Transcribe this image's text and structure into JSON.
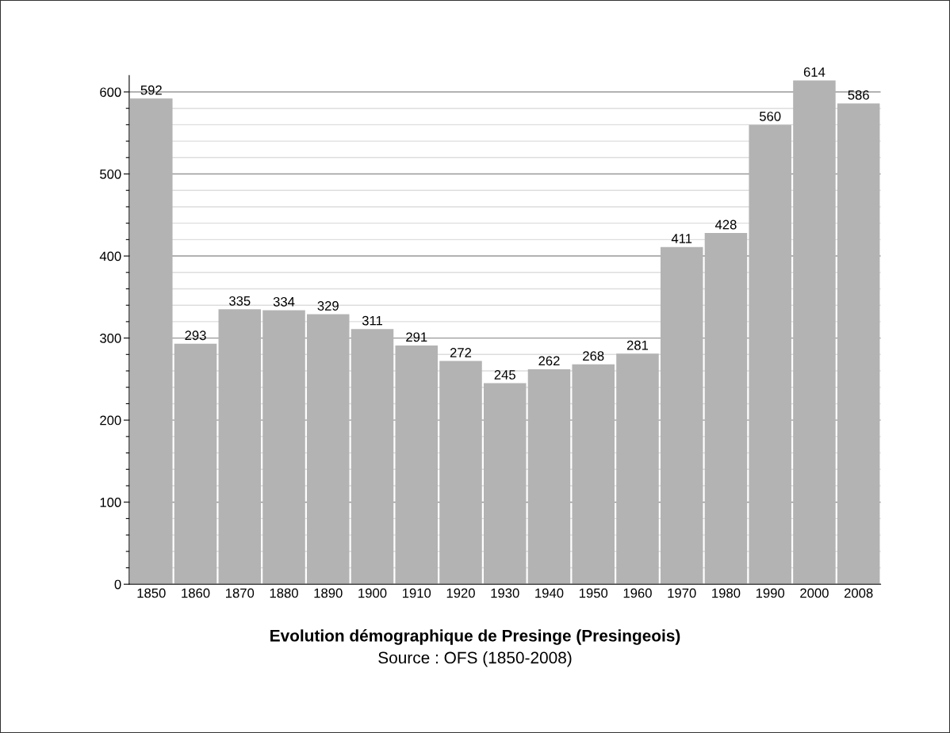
{
  "chart_data": {
    "type": "bar",
    "title": "Evolution démographique de Presinge (Presingeois)",
    "annotations": [
      "Source : OFS (1850-2008)"
    ],
    "categories": [
      "1850",
      "1860",
      "1870",
      "1880",
      "1890",
      "1900",
      "1910",
      "1920",
      "1930",
      "1940",
      "1950",
      "1960",
      "1970",
      "1980",
      "1990",
      "2000",
      "2008"
    ],
    "values": [
      592,
      293,
      335,
      334,
      329,
      311,
      291,
      272,
      245,
      262,
      268,
      281,
      411,
      428,
      560,
      614,
      586
    ],
    "color": "#b3b3b3",
    "data_labels": true,
    "ylim": [
      0,
      620
    ],
    "yticks": [
      0,
      {
        "value": 20,
        "label": null
      },
      {
        "value": 40,
        "label": null
      },
      {
        "value": 60,
        "label": null
      },
      {
        "value": 80,
        "label": null
      },
      100,
      {
        "value": 120,
        "label": null
      },
      {
        "value": 140,
        "label": null
      },
      {
        "value": 160,
        "label": null
      },
      {
        "value": 180,
        "label": null
      },
      200,
      {
        "value": 220,
        "label": null
      },
      {
        "value": 240,
        "label": null
      },
      {
        "value": 260,
        "label": null
      },
      {
        "value": 280,
        "label": null
      },
      300,
      {
        "value": 320,
        "label": null
      },
      {
        "value": 340,
        "label": null
      },
      {
        "value": 360,
        "label": null
      },
      {
        "value": 380,
        "label": null
      },
      400,
      {
        "value": 420,
        "label": null
      },
      {
        "value": 440,
        "label": null
      },
      {
        "value": 460,
        "label": null
      },
      {
        "value": 480,
        "label": null
      },
      500,
      {
        "value": 520,
        "label": null
      },
      {
        "value": 540,
        "label": null
      },
      {
        "value": 560,
        "label": null
      },
      {
        "value": 580,
        "label": null
      },
      600
    ],
    "grid": "y"
  }
}
